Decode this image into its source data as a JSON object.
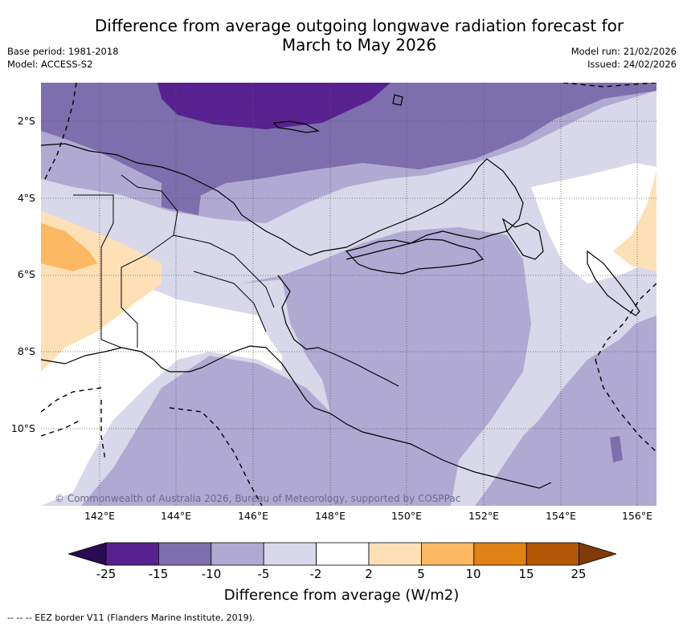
{
  "title_line1": "Difference from average outgoing longwave radiation forecast for",
  "title_line2": "March to May 2026",
  "meta": {
    "base_period": "Base period: 1981-2018",
    "model": "Model: ACCESS-S2",
    "model_run": "Model run: 21/02/2026",
    "issued": "Issued: 24/02/2026"
  },
  "map": {
    "lat_labels": [
      "2°S",
      "4°S",
      "6°S",
      "8°S",
      "10°S"
    ],
    "lon_labels": [
      "142°E",
      "144°E",
      "146°E",
      "148°E",
      "150°E",
      "152°E",
      "154°E",
      "156°E"
    ],
    "credit": "© Commonwealth of Australia 2026, Bureau of Meteorology, supported by COSPPac"
  },
  "legend": {
    "ticks": [
      "-25",
      "-15",
      "-10",
      "-5",
      "-2",
      "2",
      "5",
      "10",
      "15",
      "25"
    ],
    "colors": [
      "#2d0a55",
      "#57228f",
      "#7d6fad",
      "#b0aad2",
      "#d8d8ea",
      "#ffffff",
      "#fee0b6",
      "#fdb863",
      "#e08214",
      "#b35806",
      "#7f3b08"
    ],
    "label": "Difference from average (W/m2)"
  },
  "footnote": "--  --  -- EEZ border V11 (Flanders Marine Institute, 2019)."
}
